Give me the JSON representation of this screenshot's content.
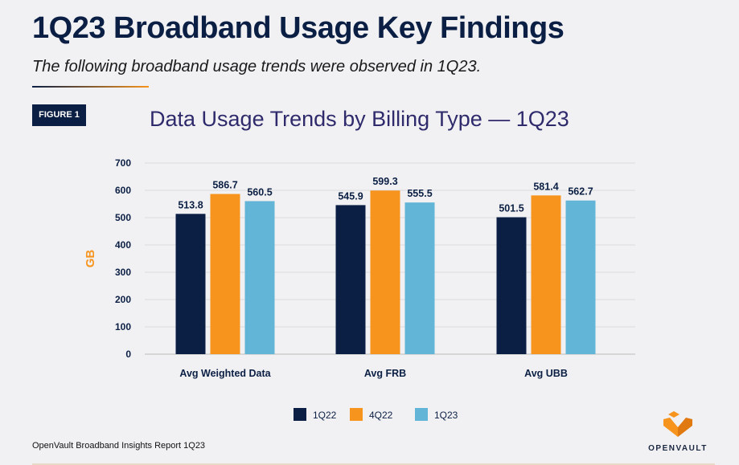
{
  "header": {
    "title": "1Q23 Broadband Usage Key Findings",
    "subtitle": "The following broadband usage trends were observed in 1Q23.",
    "figure_label": "FIGURE 1"
  },
  "footer": {
    "source": "OpenVault Broadband Insights Report 1Q23",
    "logo_text": "OpenVault"
  },
  "colors": {
    "1Q22": "#0b1f44",
    "4Q22": "#f7941d",
    "1Q23": "#62b5d6"
  },
  "chart_data": {
    "type": "bar",
    "title": "Data Usage Trends by Billing Type — 1Q23",
    "ylabel": "GB",
    "xlabel": "",
    "ylim": [
      0,
      700
    ],
    "yticks": [
      0,
      100,
      200,
      300,
      400,
      500,
      600,
      700
    ],
    "grid": true,
    "legend": "bottom",
    "categories": [
      "Avg Weighted Data",
      "Avg FRB",
      "Avg UBB"
    ],
    "series": [
      {
        "name": "1Q22",
        "values": [
          513.8,
          545.9,
          501.5
        ]
      },
      {
        "name": "4Q22",
        "values": [
          586.7,
          599.3,
          581.4
        ]
      },
      {
        "name": "1Q23",
        "values": [
          560.5,
          555.5,
          562.7
        ]
      }
    ]
  }
}
